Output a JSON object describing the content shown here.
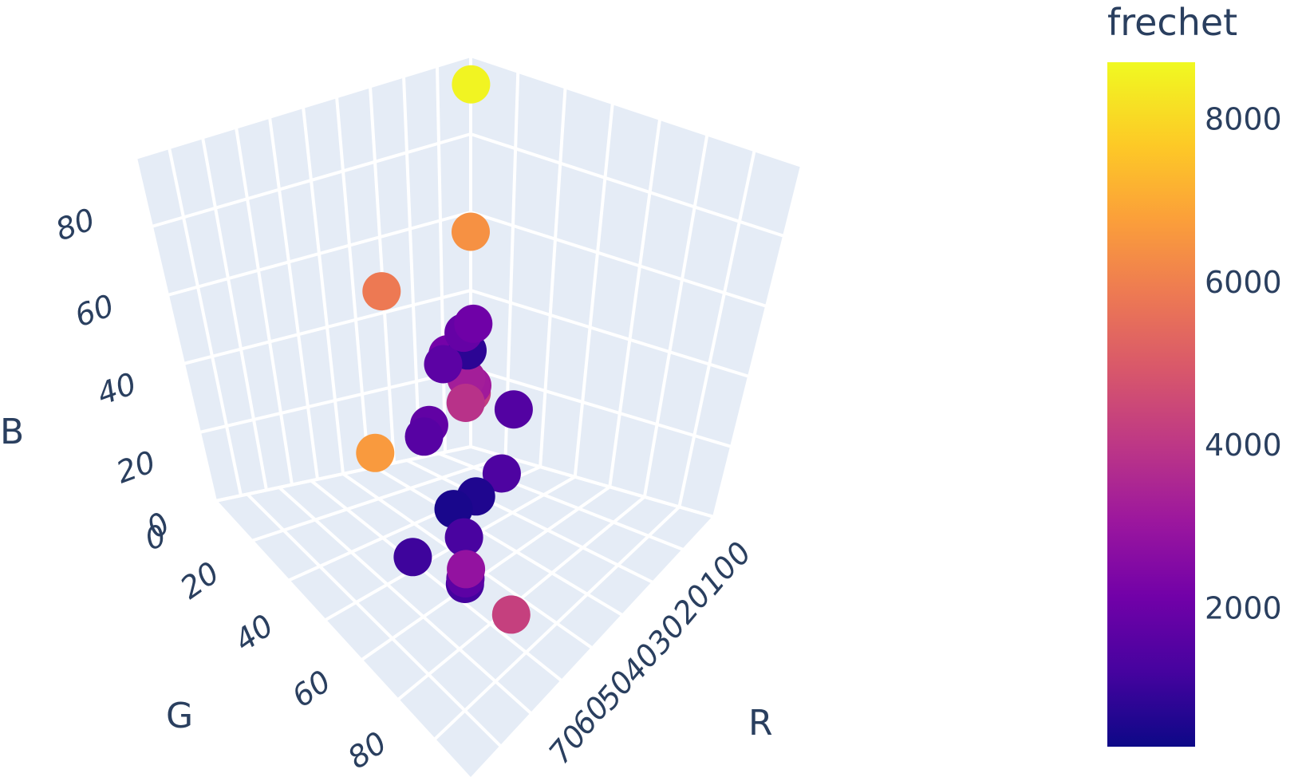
{
  "chart_data": {
    "type": "scatter",
    "subtype": "scatter3d",
    "axes": {
      "x": {
        "title": "R",
        "ticks": [
          "0",
          "10",
          "20",
          "30",
          "40",
          "50",
          "60",
          "70"
        ]
      },
      "y": {
        "title": "G",
        "ticks": [
          "0",
          "20",
          "40",
          "60",
          "80"
        ]
      },
      "z": {
        "title": "B",
        "ticks": [
          "0",
          "20",
          "40",
          "60",
          "80"
        ]
      }
    },
    "colorbar": {
      "title": "frechet",
      "ticks": [
        "2000",
        "4000",
        "6000",
        "8000"
      ],
      "range": [
        300,
        8700
      ],
      "colorscale": "Plasma"
    },
    "grid": true,
    "background": "#e5ecf6",
    "points": [
      {
        "R": 5,
        "G": 5,
        "B": 95,
        "frechet": 8600
      },
      {
        "R": 2,
        "G": 30,
        "B": 46,
        "frechet": 5900
      },
      {
        "R": 2,
        "G": 32,
        "B": 5,
        "frechet": 6700
      },
      {
        "R": 0,
        "G": 0,
        "B": 55,
        "frechet": 6500
      },
      {
        "R": 42,
        "G": 43,
        "B": 65,
        "frechet": 2100
      },
      {
        "R": 40,
        "G": 44,
        "B": 62,
        "frechet": 1900
      },
      {
        "R": 32,
        "G": 42,
        "B": 48,
        "frechet": 1700
      },
      {
        "R": 28,
        "G": 30,
        "B": 44,
        "frechet": 800
      },
      {
        "R": 35,
        "G": 38,
        "B": 38,
        "frechet": 3900
      },
      {
        "R": 42,
        "G": 30,
        "B": 36,
        "frechet": 1500
      },
      {
        "R": 22,
        "G": 30,
        "B": 40,
        "frechet": 2200
      },
      {
        "R": 24,
        "G": 38,
        "B": 26,
        "frechet": 1800
      },
      {
        "R": 30,
        "G": 46,
        "B": 30,
        "frechet": 1600
      },
      {
        "R": 44,
        "G": 36,
        "B": 24,
        "frechet": 1400
      },
      {
        "R": 40,
        "G": 40,
        "B": 18,
        "frechet": 600
      },
      {
        "R": 37,
        "G": 44,
        "B": 15,
        "frechet": 500
      },
      {
        "R": 42,
        "G": 46,
        "B": 12,
        "frechet": 1300
      },
      {
        "R": 46,
        "G": 50,
        "B": 5,
        "frechet": 1200
      },
      {
        "R": 36,
        "G": 56,
        "B": 8,
        "frechet": 1100
      },
      {
        "R": 20,
        "G": 22,
        "B": 30,
        "frechet": 3300
      },
      {
        "R": 18,
        "G": 18,
        "B": 26,
        "frechet": 3200
      },
      {
        "R": 12,
        "G": 12,
        "B": 20,
        "frechet": 4200
      },
      {
        "R": 58,
        "G": 48,
        "B": 4,
        "frechet": 4300
      },
      {
        "R": 50,
        "G": 54,
        "B": 14,
        "frechet": 2900
      },
      {
        "R": 48,
        "G": 52,
        "B": 9,
        "frechet": 1700
      }
    ]
  }
}
